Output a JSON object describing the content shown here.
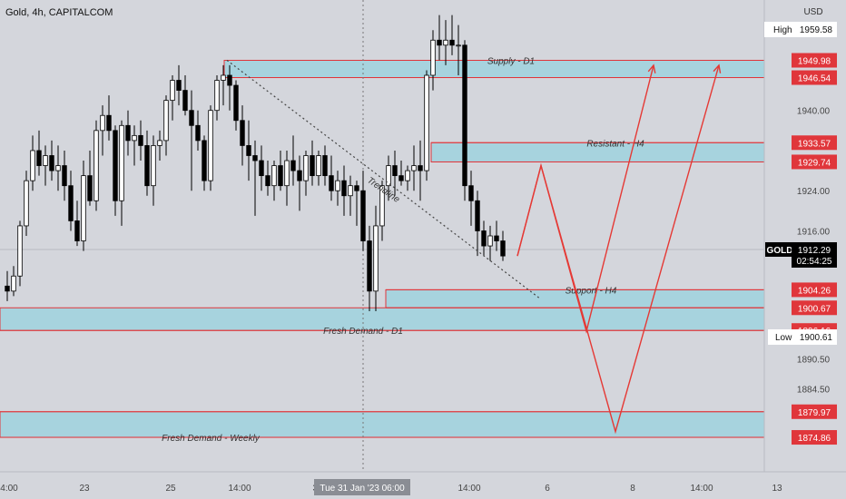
{
  "header": {
    "symbol_title": "Gold, 4h, CAPITALCOM",
    "currency": "USD"
  },
  "colors": {
    "background": "#d4d6dc",
    "bull_candle": "#ffffff",
    "bear_candle": "#000000",
    "zone_fill": "#a7d3de",
    "level_line": "#e0363b",
    "projection": "#e53935",
    "trendline": "#444444",
    "price_label_bg": "#e0363b",
    "current_price_bg": "#000000"
  },
  "chart_data": {
    "type": "candlestick",
    "timeframe": "4h",
    "y_range": [
      1868,
      1962
    ],
    "y_ticks": [
      1940.0,
      1924.0,
      1916.0,
      1890.5,
      1884.5
    ],
    "x_ticks": [
      "4:00",
      "23",
      "25",
      "14:00",
      "30",
      "14:00",
      "6",
      "8",
      "14:00",
      "13"
    ],
    "crosshair_label": "Tue 31 Jan '23  06:00",
    "high": {
      "label": "High",
      "value": 1959.58
    },
    "low": {
      "label": "Low",
      "value": 1900.61
    },
    "current": {
      "symbol": "GOLD",
      "price": 1912.29,
      "countdown": "02:54:25"
    },
    "levels": [
      {
        "name": "supply_top",
        "value": 1949.98,
        "label": "1949.98"
      },
      {
        "name": "supply_bottom",
        "value": 1946.54,
        "label": "1946.54"
      },
      {
        "name": "resistant_top",
        "value": 1933.57,
        "label": "1933.57"
      },
      {
        "name": "resistant_bottom",
        "value": 1929.74,
        "label": "1929.74"
      },
      {
        "name": "support_top",
        "value": 1904.26,
        "label": "1904.26"
      },
      {
        "name": "support_bottom",
        "value": 1900.67,
        "label": "1900.67"
      },
      {
        "name": "fresh_demand_d1",
        "value": 1896.16,
        "label": "1896.16"
      },
      {
        "name": "weekly_top",
        "value": 1879.97,
        "label": "1879.97"
      },
      {
        "name": "weekly_bottom",
        "value": 1874.86,
        "label": "1874.86"
      }
    ],
    "zones": [
      {
        "label": "Supply - D1",
        "top": 1949.98,
        "bottom": 1946.54
      },
      {
        "label": "Resistant - H4",
        "top": 1933.57,
        "bottom": 1929.74
      },
      {
        "label": "Support - H4",
        "top": 1904.26,
        "bottom": 1900.67
      },
      {
        "label": "Fresh Demand - D1",
        "top": 1900.67,
        "bottom": 1896.16
      },
      {
        "label": "Fresh Demand - Weekly",
        "top": 1879.97,
        "bottom": 1874.86
      }
    ],
    "trendline_label": "Trendline",
    "candles": [
      {
        "o": 1905,
        "h": 1908,
        "l": 1902,
        "c": 1904
      },
      {
        "o": 1904,
        "h": 1909,
        "l": 1903,
        "c": 1907
      },
      {
        "o": 1907,
        "h": 1918,
        "l": 1905,
        "c": 1917
      },
      {
        "o": 1917,
        "h": 1928,
        "l": 1915,
        "c": 1926
      },
      {
        "o": 1926,
        "h": 1935,
        "l": 1924,
        "c": 1932
      },
      {
        "o": 1932,
        "h": 1936,
        "l": 1927,
        "c": 1929
      },
      {
        "o": 1929,
        "h": 1933,
        "l": 1925,
        "c": 1931
      },
      {
        "o": 1931,
        "h": 1934,
        "l": 1926,
        "c": 1928
      },
      {
        "o": 1928,
        "h": 1933,
        "l": 1924,
        "c": 1929
      },
      {
        "o": 1929,
        "h": 1932,
        "l": 1922,
        "c": 1925
      },
      {
        "o": 1925,
        "h": 1928,
        "l": 1916,
        "c": 1918
      },
      {
        "o": 1918,
        "h": 1922,
        "l": 1913,
        "c": 1914
      },
      {
        "o": 1914,
        "h": 1930,
        "l": 1912,
        "c": 1927
      },
      {
        "o": 1927,
        "h": 1932,
        "l": 1921,
        "c": 1922
      },
      {
        "o": 1922,
        "h": 1938,
        "l": 1920,
        "c": 1936
      },
      {
        "o": 1936,
        "h": 1941,
        "l": 1931,
        "c": 1939
      },
      {
        "o": 1939,
        "h": 1943,
        "l": 1934,
        "c": 1936
      },
      {
        "o": 1936,
        "h": 1937,
        "l": 1919,
        "c": 1922
      },
      {
        "o": 1922,
        "h": 1938,
        "l": 1917,
        "c": 1937
      },
      {
        "o": 1937,
        "h": 1940,
        "l": 1931,
        "c": 1934
      },
      {
        "o": 1934,
        "h": 1937,
        "l": 1929,
        "c": 1935
      },
      {
        "o": 1935,
        "h": 1938,
        "l": 1930,
        "c": 1933
      },
      {
        "o": 1933,
        "h": 1936,
        "l": 1923,
        "c": 1925
      },
      {
        "o": 1925,
        "h": 1935,
        "l": 1921,
        "c": 1933
      },
      {
        "o": 1933,
        "h": 1936,
        "l": 1930,
        "c": 1934
      },
      {
        "o": 1934,
        "h": 1943,
        "l": 1931,
        "c": 1942
      },
      {
        "o": 1942,
        "h": 1947,
        "l": 1938,
        "c": 1946
      },
      {
        "o": 1946,
        "h": 1949,
        "l": 1941,
        "c": 1944
      },
      {
        "o": 1944,
        "h": 1947,
        "l": 1939,
        "c": 1940
      },
      {
        "o": 1940,
        "h": 1944,
        "l": 1924,
        "c": 1937
      },
      {
        "o": 1937,
        "h": 1940,
        "l": 1932,
        "c": 1934
      },
      {
        "o": 1934,
        "h": 1935,
        "l": 1924,
        "c": 1926
      },
      {
        "o": 1926,
        "h": 1941,
        "l": 1924,
        "c": 1940
      },
      {
        "o": 1940,
        "h": 1947,
        "l": 1938,
        "c": 1946
      },
      {
        "o": 1946,
        "h": 1949,
        "l": 1941,
        "c": 1947
      },
      {
        "o": 1947,
        "h": 1949,
        "l": 1940,
        "c": 1945
      },
      {
        "o": 1945,
        "h": 1946,
        "l": 1936,
        "c": 1938
      },
      {
        "o": 1938,
        "h": 1941,
        "l": 1929,
        "c": 1933
      },
      {
        "o": 1933,
        "h": 1938,
        "l": 1926,
        "c": 1931
      },
      {
        "o": 1931,
        "h": 1934,
        "l": 1919,
        "c": 1930
      },
      {
        "o": 1930,
        "h": 1933,
        "l": 1924,
        "c": 1927
      },
      {
        "o": 1927,
        "h": 1930,
        "l": 1923,
        "c": 1925
      },
      {
        "o": 1925,
        "h": 1930,
        "l": 1922,
        "c": 1929
      },
      {
        "o": 1929,
        "h": 1932,
        "l": 1924,
        "c": 1925
      },
      {
        "o": 1925,
        "h": 1932,
        "l": 1921,
        "c": 1930
      },
      {
        "o": 1930,
        "h": 1935,
        "l": 1925,
        "c": 1928
      },
      {
        "o": 1928,
        "h": 1931,
        "l": 1920,
        "c": 1926
      },
      {
        "o": 1926,
        "h": 1932,
        "l": 1923,
        "c": 1931
      },
      {
        "o": 1931,
        "h": 1934,
        "l": 1925,
        "c": 1927
      },
      {
        "o": 1927,
        "h": 1932,
        "l": 1925,
        "c": 1931
      },
      {
        "o": 1931,
        "h": 1933,
        "l": 1925,
        "c": 1927
      },
      {
        "o": 1927,
        "h": 1931,
        "l": 1922,
        "c": 1924
      },
      {
        "o": 1924,
        "h": 1928,
        "l": 1921,
        "c": 1926
      },
      {
        "o": 1926,
        "h": 1929,
        "l": 1919,
        "c": 1923
      },
      {
        "o": 1923,
        "h": 1927,
        "l": 1919,
        "c": 1925
      },
      {
        "o": 1925,
        "h": 1926,
        "l": 1917,
        "c": 1924
      },
      {
        "o": 1924,
        "h": 1928,
        "l": 1912,
        "c": 1914
      },
      {
        "o": 1914,
        "h": 1917,
        "l": 1900,
        "c": 1904
      },
      {
        "o": 1904,
        "h": 1921,
        "l": 1900,
        "c": 1917
      },
      {
        "o": 1917,
        "h": 1926,
        "l": 1914,
        "c": 1925
      },
      {
        "o": 1925,
        "h": 1931,
        "l": 1922,
        "c": 1929
      },
      {
        "o": 1929,
        "h": 1932,
        "l": 1923,
        "c": 1927
      },
      {
        "o": 1927,
        "h": 1930,
        "l": 1925,
        "c": 1926
      },
      {
        "o": 1926,
        "h": 1929,
        "l": 1924,
        "c": 1928
      },
      {
        "o": 1928,
        "h": 1933,
        "l": 1924,
        "c": 1929
      },
      {
        "o": 1929,
        "h": 1934,
        "l": 1922,
        "c": 1928
      },
      {
        "o": 1928,
        "h": 1948,
        "l": 1926,
        "c": 1947
      },
      {
        "o": 1947,
        "h": 1956,
        "l": 1944,
        "c": 1954
      },
      {
        "o": 1954,
        "h": 1959,
        "l": 1950,
        "c": 1953
      },
      {
        "o": 1953,
        "h": 1958,
        "l": 1949,
        "c": 1954
      },
      {
        "o": 1954,
        "h": 1959,
        "l": 1951,
        "c": 1953
      },
      {
        "o": 1953,
        "h": 1957,
        "l": 1947,
        "c": 1953
      },
      {
        "o": 1953,
        "h": 1954,
        "l": 1922,
        "c": 1925
      },
      {
        "o": 1925,
        "h": 1928,
        "l": 1917,
        "c": 1922
      },
      {
        "o": 1922,
        "h": 1924,
        "l": 1911,
        "c": 1916
      },
      {
        "o": 1916,
        "h": 1918,
        "l": 1911,
        "c": 1913
      },
      {
        "o": 1913,
        "h": 1917,
        "l": 1910,
        "c": 1915
      },
      {
        "o": 1915,
        "h": 1918,
        "l": 1912,
        "c": 1914
      },
      {
        "o": 1914,
        "h": 1916,
        "l": 1910,
        "c": 1911
      }
    ],
    "projection_path_a": [
      {
        "x": 570,
        "v": 1911
      },
      {
        "x": 596,
        "v": 1929
      },
      {
        "x": 646,
        "v": 1896
      },
      {
        "x": 720,
        "v": 1949
      }
    ],
    "projection_path_b": [
      {
        "x": 570,
        "v": 1911
      },
      {
        "x": 596,
        "v": 1929
      },
      {
        "x": 678,
        "v": 1876
      },
      {
        "x": 792,
        "v": 1949
      }
    ]
  }
}
